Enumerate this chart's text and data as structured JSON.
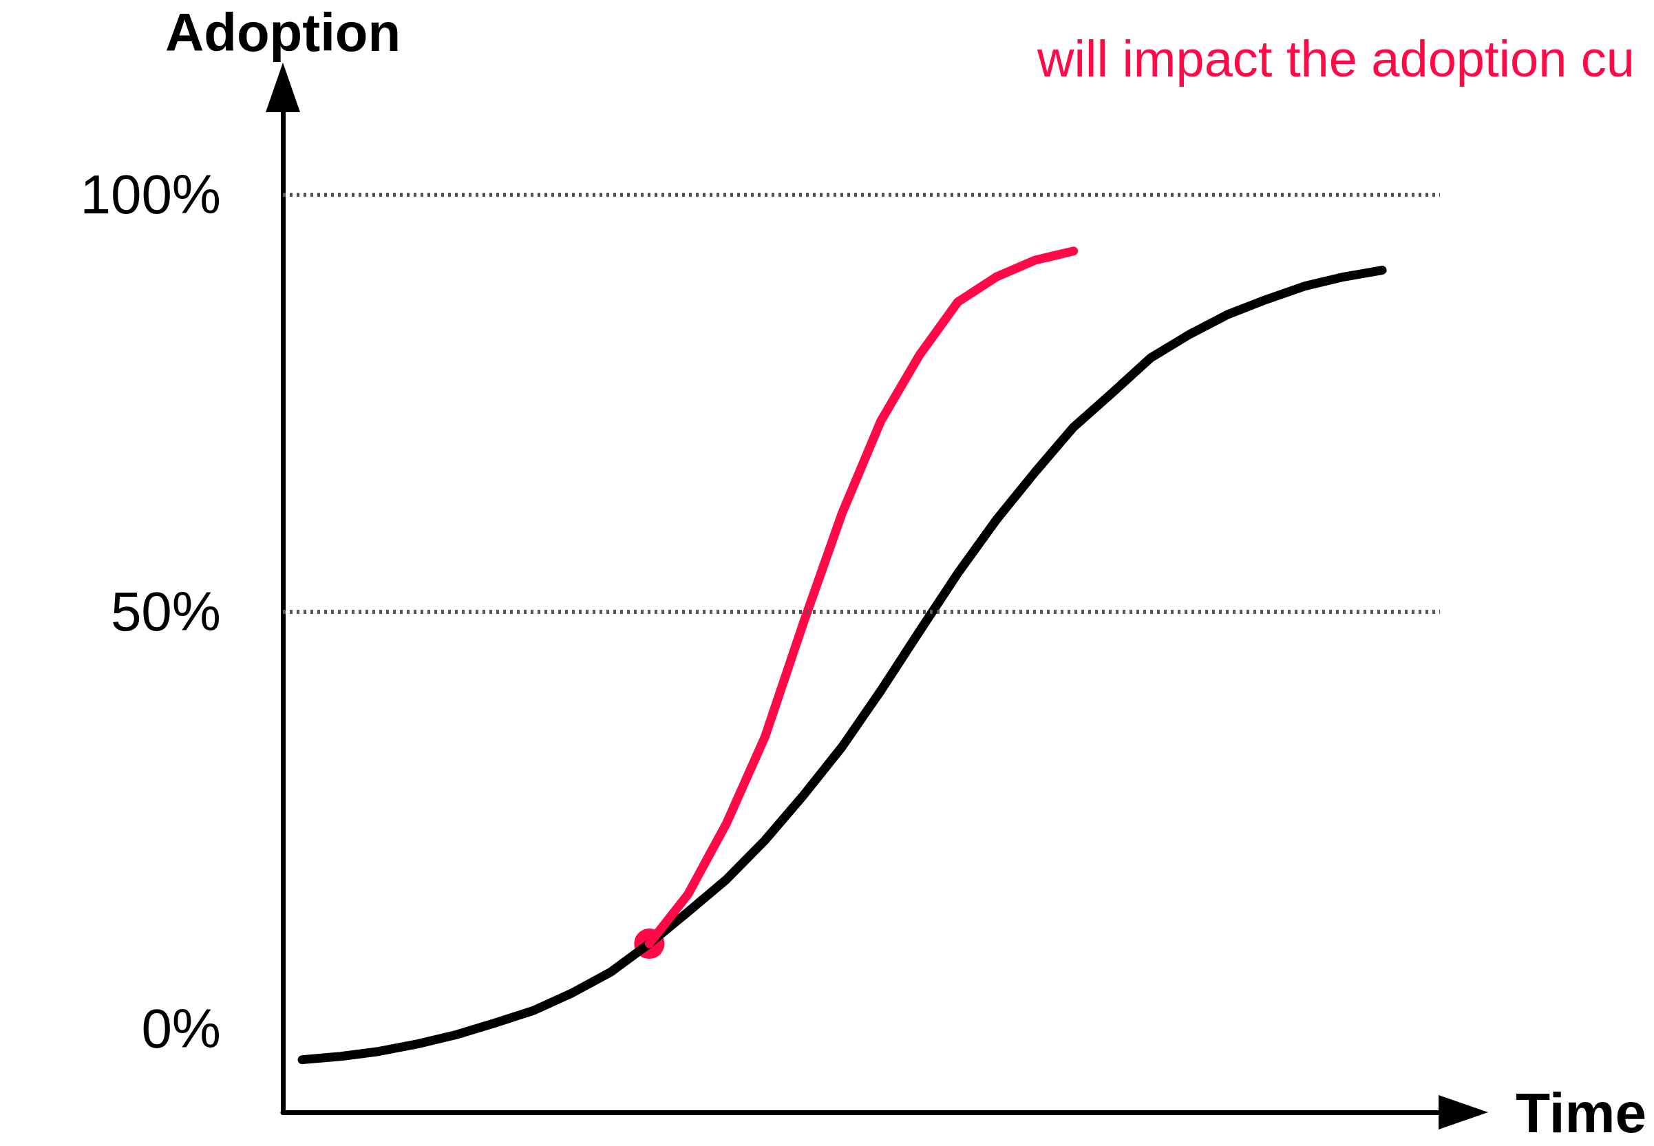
{
  "chart_data": {
    "type": "line",
    "ylabel": "Adoption",
    "xlabel": "Time",
    "annotations": [
      "will impact the adoption cu"
    ],
    "categories": [
      null,
      null,
      null,
      null,
      null,
      null,
      null,
      null,
      null,
      null,
      null,
      null,
      null,
      null,
      null,
      null,
      null,
      null,
      null,
      null,
      null,
      null,
      null,
      null,
      null,
      null,
      null,
      null,
      null,
      null
    ],
    "ylim": [
      -10,
      110
    ],
    "yticks": [
      {
        "value": 0,
        "label": "0%"
      },
      {
        "value": 50,
        "label": "50%"
      },
      {
        "value": 100,
        "label": "100%"
      }
    ],
    "tick_labels": "y",
    "marker": "none",
    "ref_lines": [
      {
        "axis": "y",
        "value": 50,
        "color": "#555555",
        "line_style": "dotted"
      },
      {
        "axis": "y",
        "value": 100,
        "color": "#555555",
        "line_style": "dotted"
      }
    ],
    "series": [
      {
        "color": "#000000",
        "values": [
          -3.7,
          -3.3,
          -2.7,
          -1.8,
          -0.7,
          0.7,
          2.2,
          4.3,
          6.8,
          10.2,
          14.0,
          17.9,
          22.6,
          28.0,
          33.8,
          40.5,
          47.6,
          54.6,
          61.0,
          66.7,
          72.1,
          76.2,
          80.4,
          83.2,
          85.6,
          87.4,
          89.0,
          90.1,
          90.9,
          null
        ]
      },
      {
        "color": "#ff0a47",
        "values": [
          null,
          null,
          null,
          null,
          null,
          null,
          null,
          null,
          null,
          10.2,
          16.1,
          24.6,
          35.0,
          48.7,
          61.8,
          72.8,
          80.7,
          87.1,
          90.1,
          92.1,
          93.2,
          null,
          null,
          null,
          null,
          null,
          null,
          null,
          null,
          null
        ]
      },
      {
        "type": "scatter",
        "marker": "circle",
        "color": "#ff0a47",
        "values": [
          null,
          null,
          null,
          null,
          null,
          null,
          null,
          null,
          null,
          10.2,
          null,
          null,
          null,
          null,
          null,
          null,
          null,
          null,
          null,
          null,
          null,
          null,
          null,
          null,
          null,
          null,
          null,
          null,
          null,
          null
        ]
      }
    ]
  }
}
